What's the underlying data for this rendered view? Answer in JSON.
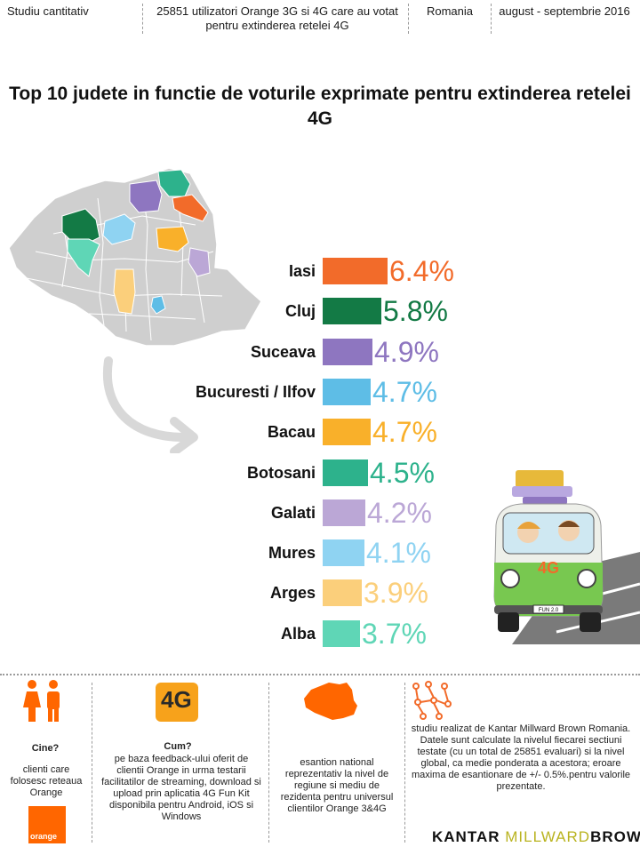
{
  "header": {
    "study_type": "Studiu cantitativ",
    "sample": "25851  utilizatori Orange 3G si 4G care au votat pentru extinderea retelei 4G",
    "country": "Romania",
    "period": "august - septembrie 2016"
  },
  "title": "Top 10 judete in functie de voturile exprimate pentru extinderea retelei 4G",
  "colors": {
    "Iasi": "#f26b2a",
    "Cluj": "#137a45",
    "Suceava": "#8e76c0",
    "Bucuresti / Ilfov": "#5ebde6",
    "Bacau": "#f9b02a",
    "Botosani": "#2db28c",
    "Galati": "#bba7d6",
    "Mures": "#8fd3f2",
    "Arges": "#fbcf7b",
    "Alba": "#5fd6b6"
  },
  "chart_data": {
    "type": "bar",
    "orientation": "horizontal",
    "categories": [
      "Iasi",
      "Cluj",
      "Suceava",
      "Bucuresti / Ilfov",
      "Bacau",
      "Botosani",
      "Galati",
      "Mures",
      "Arges",
      "Alba"
    ],
    "values": [
      6.4,
      5.8,
      4.9,
      4.7,
      4.7,
      4.5,
      4.2,
      4.1,
      3.9,
      3.7
    ],
    "value_labels": [
      "6.4%",
      "5.8%",
      "4.9%",
      "4.7%",
      "4.7%",
      "4.5%",
      "4.2%",
      "4.1%",
      "3.9%",
      "3.7%"
    ],
    "title": "Top 10 judete in functie de voturile exprimate pentru extinderea retelei 4G",
    "xlabel": "",
    "ylabel": "",
    "grid": false,
    "legend": "none"
  },
  "van": {
    "badge": "4G",
    "plate": "FUN 2.0"
  },
  "footer": {
    "who": {
      "title": "Cine?",
      "text": "clienti care folosesc reteaua Orange",
      "logo_text": "orange"
    },
    "how": {
      "icon_text": "4G",
      "title": "Cum?",
      "text": "pe baza feedback-ului oferit de clientii Orange in urma testarii facilitatilor de streaming, download  si upload prin aplicatia 4G Fun Kit disponibila pentru Android, iOS si Windows"
    },
    "sample": {
      "text": "esantion national reprezentativ la nivel de regiune si mediu de rezidenta pentru universul clientilor Orange 3&4G"
    },
    "method": {
      "text": "studiu realizat de Kantar Millward Brown Romania. Datele sunt calculate la nivelul fiecarei sectiuni testate (cu un total de 25851 evaluari) si la nivel global, ca medie ponderata a acestora; eroare maxima de esantionare de +/- 0.5%.pentru valorile prezentate."
    },
    "brand": {
      "part1": "KANTAR ",
      "part2": "MILLWARD",
      "part3": "BROWN"
    }
  }
}
